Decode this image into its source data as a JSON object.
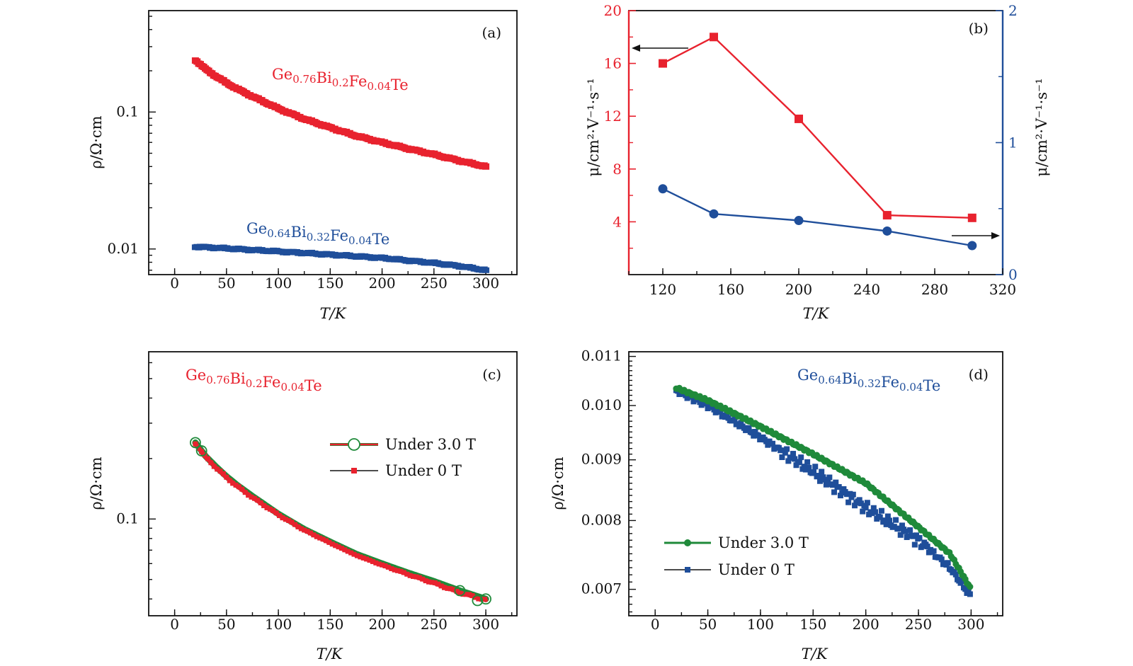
{
  "colors": {
    "red": "#e8222e",
    "blue": "#1f4e9a",
    "green": "#1f8a3a",
    "black": "#111111"
  },
  "chart_data": [
    {
      "panel": "(a)",
      "type": "line",
      "xlabel": "T/K",
      "ylabel": "ρ/Ω·cm",
      "yscale": "log",
      "xlim": [
        -25,
        330
      ],
      "ylim": [
        0.0065,
        0.55
      ],
      "xticks": [
        0,
        50,
        100,
        150,
        200,
        250,
        300
      ],
      "yticks": [
        0.01,
        0.1
      ],
      "ytick_labels": [
        "0.01",
        "0.1"
      ],
      "series": [
        {
          "name": "Ge0.76Bi0.2Fe0.04Te",
          "label_parts": [
            [
              "Ge",
              "0.76"
            ],
            [
              "Bi",
              "0.2"
            ],
            [
              "Fe",
              "0.04"
            ],
            [
              "Te",
              ""
            ]
          ],
          "color": "red",
          "x": [
            20,
            30,
            40,
            50,
            60,
            75,
            100,
            125,
            150,
            175,
            200,
            225,
            250,
            275,
            300
          ],
          "y": [
            0.24,
            0.205,
            0.182,
            0.163,
            0.148,
            0.13,
            0.106,
            0.089,
            0.077,
            0.067,
            0.06,
            0.054,
            0.049,
            0.044,
            0.04
          ]
        },
        {
          "name": "Ge0.64Bi0.32Fe0.04Te",
          "label_parts": [
            [
              "Ge",
              "0.64"
            ],
            [
              "Bi",
              "0.32"
            ],
            [
              "Fe",
              "0.04"
            ],
            [
              "Te",
              ""
            ]
          ],
          "color": "blue",
          "x": [
            20,
            50,
            100,
            150,
            200,
            250,
            275,
            300
          ],
          "y": [
            0.0104,
            0.0101,
            0.0096,
            0.0091,
            0.0086,
            0.0079,
            0.0075,
            0.007
          ]
        }
      ]
    },
    {
      "panel": "(b)",
      "type": "line",
      "xlabel": "T/K",
      "ylabel_left": "μ/cm²·V⁻¹·s⁻¹",
      "ylabel_right": "μ/cm²·V⁻¹·s⁻¹",
      "xlim": [
        100,
        320
      ],
      "ylim_left": [
        0,
        20
      ],
      "ylim_right": [
        0,
        2
      ],
      "xticks": [
        120,
        160,
        200,
        240,
        280,
        320
      ],
      "yticks_left": [
        4,
        8,
        12,
        16,
        20
      ],
      "yticks_right": [
        0,
        1,
        2
      ],
      "series": [
        {
          "name": "left",
          "axis": "left",
          "color": "red",
          "marker": "square",
          "x": [
            120,
            150,
            200,
            252,
            302
          ],
          "y": [
            16.0,
            18.0,
            11.8,
            4.5,
            4.3
          ]
        },
        {
          "name": "right",
          "axis": "right",
          "color": "blue",
          "marker": "circle",
          "x": [
            120,
            150,
            200,
            252,
            302
          ],
          "y": [
            0.65,
            0.46,
            0.41,
            0.33,
            0.22
          ]
        }
      ]
    },
    {
      "panel": "(c)",
      "type": "line",
      "xlabel": "T/K",
      "ylabel": "ρ/Ω·cm",
      "yscale": "log",
      "xlim": [
        -25,
        330
      ],
      "ylim": [
        0.033,
        0.68
      ],
      "xticks": [
        0,
        50,
        100,
        150,
        200,
        250,
        300
      ],
      "yticks": [
        0.1
      ],
      "ytick_labels": [
        "0.1"
      ],
      "title_parts": [
        [
          "Ge",
          "0.76"
        ],
        [
          "Bi",
          "0.2"
        ],
        [
          "Fe",
          "0.04"
        ],
        [
          "Te",
          ""
        ]
      ],
      "title_color": "red",
      "series": [
        {
          "name": "Under 3.0 T",
          "color": "green",
          "marker": "open-circle",
          "x": [
            20,
            30,
            40,
            50,
            60,
            75,
            100,
            125,
            150,
            175,
            200,
            225,
            250,
            275,
            300
          ],
          "y": [
            0.24,
            0.205,
            0.182,
            0.163,
            0.148,
            0.13,
            0.106,
            0.089,
            0.077,
            0.067,
            0.06,
            0.054,
            0.049,
            0.044,
            0.04
          ]
        },
        {
          "name": "Under 0 T",
          "color": "red",
          "marker": "square",
          "x": [
            20,
            30,
            40,
            50,
            60,
            75,
            100,
            125,
            150,
            175,
            200,
            225,
            250,
            275,
            300
          ],
          "y": [
            0.238,
            0.203,
            0.18,
            0.161,
            0.146,
            0.128,
            0.105,
            0.088,
            0.076,
            0.066,
            0.059,
            0.053,
            0.048,
            0.043,
            0.0395
          ]
        }
      ]
    },
    {
      "panel": "(d)",
      "type": "line",
      "xlabel": "T/K",
      "ylabel": "ρ/Ω·cm",
      "yscale": "log",
      "xlim": [
        -25,
        330
      ],
      "ylim": [
        0.00665,
        0.0111
      ],
      "xticks": [
        0,
        50,
        100,
        150,
        200,
        250,
        300
      ],
      "yticks": [
        0.007,
        0.008,
        0.009,
        0.01,
        0.011
      ],
      "ytick_labels": [
        "0.007",
        "0.008",
        "0.009",
        "0.010",
        "0.011"
      ],
      "title_parts": [
        [
          "Ge",
          "0.64"
        ],
        [
          "Bi",
          "0.32"
        ],
        [
          "Fe",
          "0.04"
        ],
        [
          "Te",
          ""
        ]
      ],
      "title_color": "blue",
      "series": [
        {
          "name": "Under 3.0 T",
          "color": "green",
          "marker": "circle",
          "x": [
            20,
            50,
            100,
            150,
            200,
            250,
            280,
            300
          ],
          "y": [
            0.01035,
            0.0101,
            0.0096,
            0.0091,
            0.0086,
            0.0079,
            0.0075,
            0.007
          ]
        },
        {
          "name": "Under 0 T",
          "color": "blue",
          "marker": "square",
          "x": [
            20,
            50,
            100,
            150,
            200,
            250,
            280,
            300
          ],
          "y": [
            0.0103,
            0.01,
            0.0094,
            0.0088,
            0.0082,
            0.0077,
            0.0073,
            0.0069
          ]
        }
      ]
    }
  ]
}
